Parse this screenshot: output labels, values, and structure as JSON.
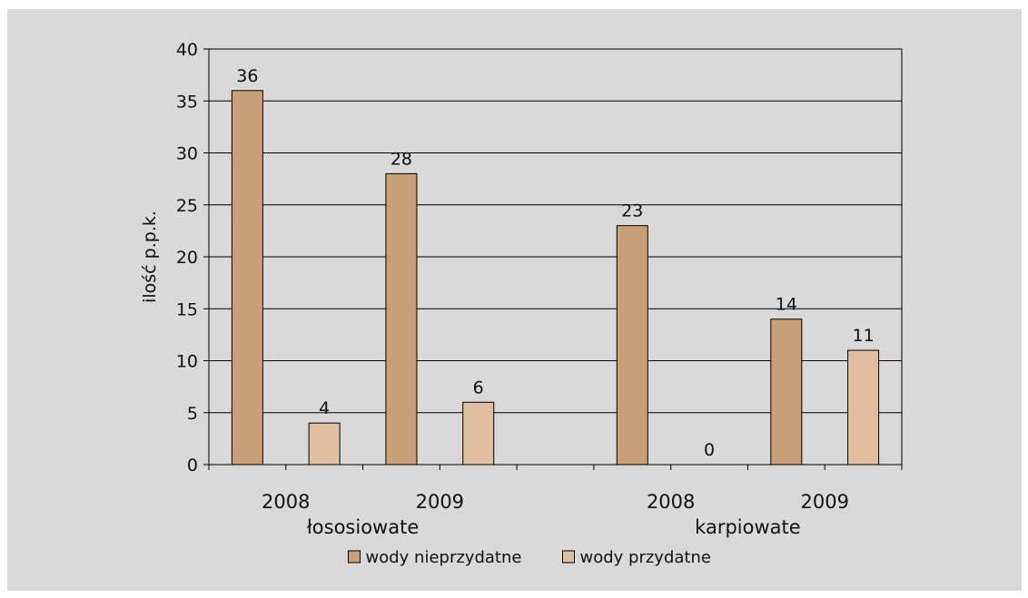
{
  "chart_data": {
    "type": "bar",
    "ylabel": "ilość p.p.k.",
    "ylim": [
      0,
      40
    ],
    "yticks": [
      0,
      5,
      10,
      15,
      20,
      25,
      30,
      35,
      40
    ],
    "grid": true,
    "groups": [
      {
        "label": "łososiowate",
        "years": [
          {
            "year": "2008",
            "values": {
              "wody nieprzydatne": 36,
              "wody przydatne": 4
            }
          },
          {
            "year": "2009",
            "values": {
              "wody nieprzydatne": 28,
              "wody przydatne": 6
            }
          }
        ]
      },
      {
        "label": "karpiowate",
        "years": [
          {
            "year": "2008",
            "values": {
              "wody nieprzydatne": 23,
              "wody przydatne": 0
            }
          },
          {
            "year": "2009",
            "values": {
              "wody nieprzydatne": 14,
              "wody przydatne": 11
            }
          }
        ]
      }
    ],
    "series": [
      {
        "name": "wody nieprzydatne",
        "color": "#c8a077"
      },
      {
        "name": "wody przydatne",
        "color": "#dfbf9f"
      }
    ],
    "legend_position": "bottom"
  }
}
